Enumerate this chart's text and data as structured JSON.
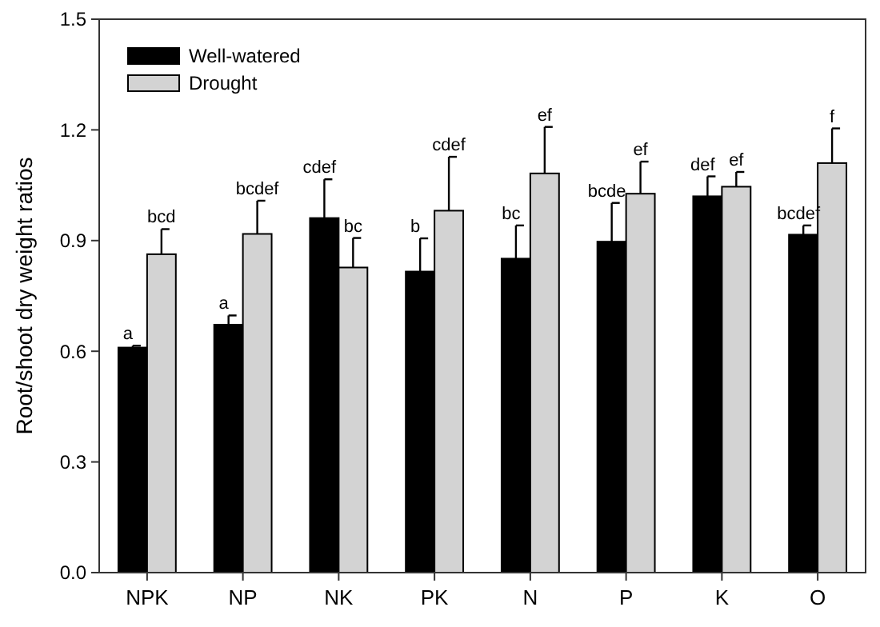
{
  "chart_data": {
    "type": "bar",
    "ylabel": "Root/shoot dry weight ratios",
    "categories": [
      "NPK",
      "NP",
      "NK",
      "PK",
      "N",
      "P",
      "K",
      "O"
    ],
    "series": [
      {
        "name": "Well-watered",
        "color": "#000000",
        "values": [
          0.61,
          0.672,
          0.961,
          0.816,
          0.851,
          0.897,
          1.02,
          0.916
        ],
        "errors": [
          0.005,
          0.025,
          0.105,
          0.09,
          0.09,
          0.105,
          0.054,
          0.025
        ]
      },
      {
        "name": "Drought",
        "color": "#d3d3d3",
        "values": [
          0.863,
          0.918,
          0.827,
          0.981,
          1.082,
          1.027,
          1.046,
          1.11
        ],
        "errors": [
          0.068,
          0.09,
          0.08,
          0.146,
          0.126,
          0.087,
          0.04,
          0.094
        ]
      }
    ],
    "ylim": [
      0,
      1.5
    ],
    "yticks": [
      {
        "value": 0,
        "label": "0.0"
      },
      0.3,
      0.6,
      0.9,
      1.2,
      1.5
    ],
    "grid": false,
    "legend": "top left",
    "annotations": [
      "a",
      "bcd",
      "a",
      "bcdef",
      "cdef",
      "bc",
      "b",
      "cdef",
      "bc",
      "ef",
      "bcde",
      "ef",
      "def",
      "ef",
      "bcdef",
      "f"
    ]
  }
}
